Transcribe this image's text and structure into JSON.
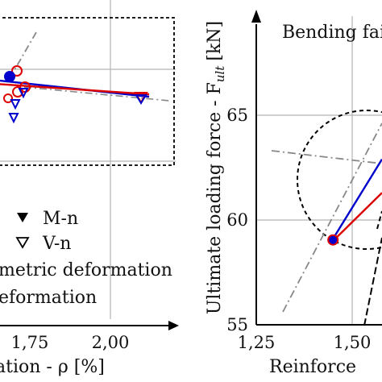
{
  "chart_data": [
    {
      "type": "scatter",
      "panel": "left",
      "xlabel": "ation - ρ [%]",
      "xticks": [
        1.75,
        2.0
      ],
      "xtick_labels": [
        "1,75",
        "2,00"
      ],
      "legend": [
        {
          "label": "M-n",
          "marker": "filled-down-triangle"
        },
        {
          "label": "V-n",
          "marker": "open-down-triangle"
        },
        {
          "label": "metric deformation",
          "line": "gray-dashdot"
        },
        {
          "label": "eformation",
          "line": "black-dashed"
        }
      ],
      "series": [
        {
          "color": "#0000cc",
          "points": [
            [
              1.54,
              95
            ],
            [
              2.12,
              120
            ]
          ]
        },
        {
          "color": "#dd0000",
          "points": [
            [
              1.53,
              101
            ],
            [
              2.12,
              117
            ]
          ]
        }
      ],
      "extra_markers": [
        {
          "type": "open-down-triangle",
          "color": "#0000cc",
          "x": 1.6,
          "y": 146
        },
        {
          "type": "open-down-triangle",
          "color": "#0000cc",
          "x": 1.63,
          "y": 113
        }
      ]
    },
    {
      "type": "line",
      "panel": "right",
      "title": "Bending fai",
      "xlabel": "Reinforce",
      "ylabel": "Ultimate loading force - F",
      "ylabel_sub": "ult",
      "ylabel_unit": "[kN]",
      "xlim": [
        1.25,
        1.7
      ],
      "ylim": [
        55,
        67
      ],
      "xticks": [
        1.25,
        1.5
      ],
      "xtick_labels": [
        "1,25",
        "1,50"
      ],
      "yticks": [
        55,
        60,
        65
      ],
      "ytick_labels": [
        "55",
        "60",
        "65"
      ],
      "series": [
        {
          "color": "#0000cc",
          "points": [
            [
              1.45,
              59.1
            ],
            [
              1.64,
              62.9
            ]
          ]
        },
        {
          "color": "#dd0000",
          "points": [
            [
              1.45,
              59.0
            ],
            [
              1.7,
              61.3
            ]
          ]
        }
      ],
      "marker_point": {
        "x": 1.45,
        "y": 59.05
      }
    }
  ]
}
